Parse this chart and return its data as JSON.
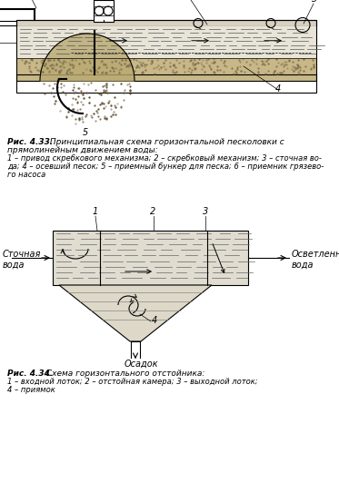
{
  "bg_color": "white",
  "fig_width": 3.73,
  "fig_height": 5.32,
  "dpi": 100,
  "fig1_title": "Рис. 4.33. Принципиальная схема горизонтальной песколовки с",
  "fig1_title2": "прямолинейным движением воды:",
  "fig1_caption": "1 – привод скребкового механизма; 2 – скребковый механизм; 3 – сточная во-\nда; 4 – осевший песок; 5 – приемный бункер для песка; 6 – приемник грязево-\nго насоса",
  "fig2_title": "Рис. 4.34. Схема горизонтального отстойника:",
  "fig2_caption": "1 – входной лоток; 2 – отстойная камера; 3 – выходной лоток;\n4 – приямок",
  "label_stoch": "Сточная\nвода",
  "label_osvet": "Осветленная\nвода",
  "label_osadok": "Осадок"
}
